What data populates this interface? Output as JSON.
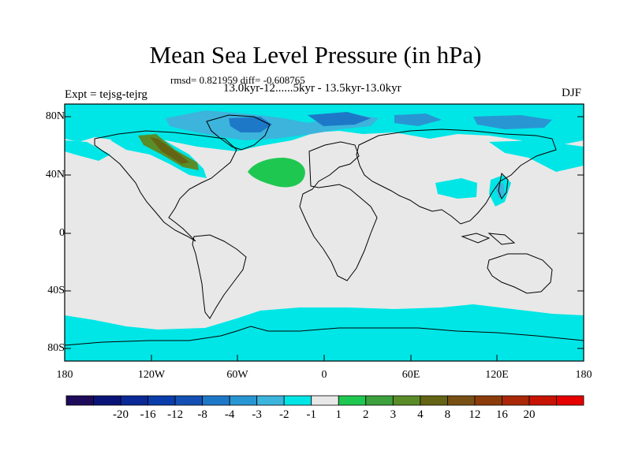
{
  "title": "Mean Sea Level Pressure (in hPa)",
  "stats_line": "rmsd= 0.821959 diff= -0.608765",
  "period_line": "13.0kyr-12......5kyr - 13.5kyr-13.0kyr",
  "expt_label": "Expt = tejsg-tejrg",
  "season": "DJF",
  "lat_ticks": [
    "80N",
    "40N",
    "0",
    "40S",
    "80S"
  ],
  "lon_ticks": [
    "180",
    "120W",
    "60W",
    "0",
    "60E",
    "120E",
    "180"
  ],
  "colorbar": {
    "colors": [
      "#1e0a5a",
      "#0a1478",
      "#0a2896",
      "#0a3caa",
      "#1450b4",
      "#1e78c8",
      "#2896d2",
      "#3cb4dc",
      "#00e6e6",
      "#e8e8e8",
      "#1ec850",
      "#3ca03c",
      "#5a8c28",
      "#646414",
      "#785014",
      "#8c3c0a",
      "#aa2808",
      "#c81404",
      "#e60000"
    ],
    "labels": [
      "-20",
      "-16",
      "-12",
      "-8",
      "-4",
      "-3",
      "-2",
      "-1",
      "1",
      "2",
      "3",
      "4",
      "8",
      "12",
      "16",
      "20"
    ]
  },
  "colors": {
    "neutral": "#e8e8e8",
    "light_blue": "#00e6e6",
    "mid_blue": "#3cb4dc",
    "dark_blue": "#1e78c8",
    "green": "#1ec850",
    "olive": "#5a8c28"
  }
}
